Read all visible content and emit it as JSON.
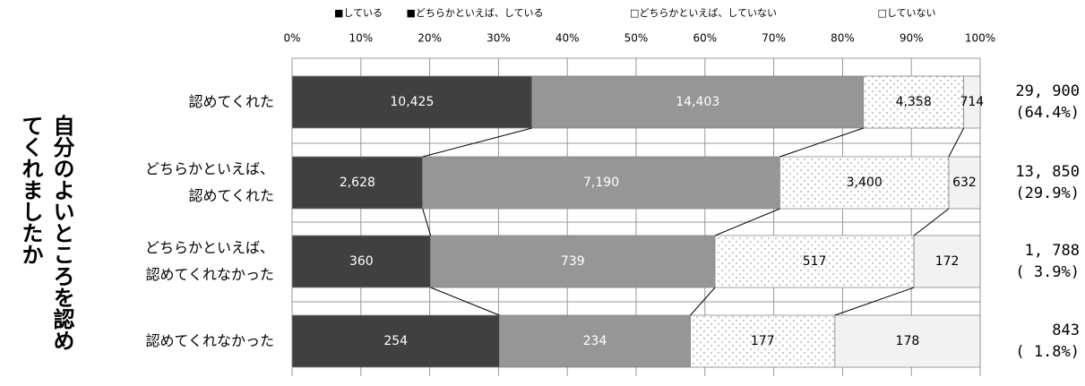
{
  "chart_data": {
    "type": "stacked-bar-100",
    "y_label": "自分のよいところを認めてくれましたか",
    "categories": [
      "認めてくれた",
      "どちらかといえば、\n認めてくれた",
      "どちらかといえば、\n認めてくれなかった",
      "認めてくれなかった"
    ],
    "series": [
      {
        "name": "■している",
        "color": "#404040",
        "values": [
          10425,
          2628,
          360,
          254
        ],
        "value_labels": [
          "10,425",
          "2,628",
          "360",
          "254"
        ]
      },
      {
        "name": "■どちらかといえば、している",
        "color": "#969696",
        "values": [
          14403,
          7190,
          739,
          234
        ],
        "value_labels": [
          "14,403",
          "7,190",
          "739",
          "234"
        ]
      },
      {
        "name": "□どちらかといえば、していない",
        "color": "dots",
        "values": [
          4358,
          3400,
          517,
          177
        ],
        "value_labels": [
          "4,358",
          "3,400",
          "517",
          "177"
        ]
      },
      {
        "name": "□していない",
        "color": "#f2f2f2",
        "values": [
          714,
          632,
          172,
          178
        ],
        "value_labels": [
          "714",
          "632",
          "172",
          "178"
        ]
      }
    ],
    "totals": {
      "values": [
        29900,
        13850,
        1788,
        843
      ],
      "value_labels": [
        "29, 900",
        "13, 850",
        "1, 788",
        "843"
      ]
    },
    "shares": {
      "values": [
        64.4,
        29.9,
        3.9,
        1.8
      ],
      "value_labels": [
        "(64.4%)",
        "(29.9%)",
        "( 3.9%)",
        "( 1.8%)"
      ]
    },
    "xlim": [
      0,
      100
    ],
    "xticks": [
      {
        "value": 0,
        "label": "0%"
      },
      {
        "value": 10,
        "label": "10%"
      },
      {
        "value": 20,
        "label": "20%"
      },
      {
        "value": 30,
        "label": "30%"
      },
      {
        "value": 40,
        "label": "40%"
      },
      {
        "value": 50,
        "label": "50%"
      },
      {
        "value": 60,
        "label": "60%"
      },
      {
        "value": 70,
        "label": "70%"
      },
      {
        "value": 80,
        "label": "80%"
      },
      {
        "value": 90,
        "label": "90%"
      },
      {
        "value": 100,
        "label": "100%"
      }
    ],
    "grid": true
  }
}
